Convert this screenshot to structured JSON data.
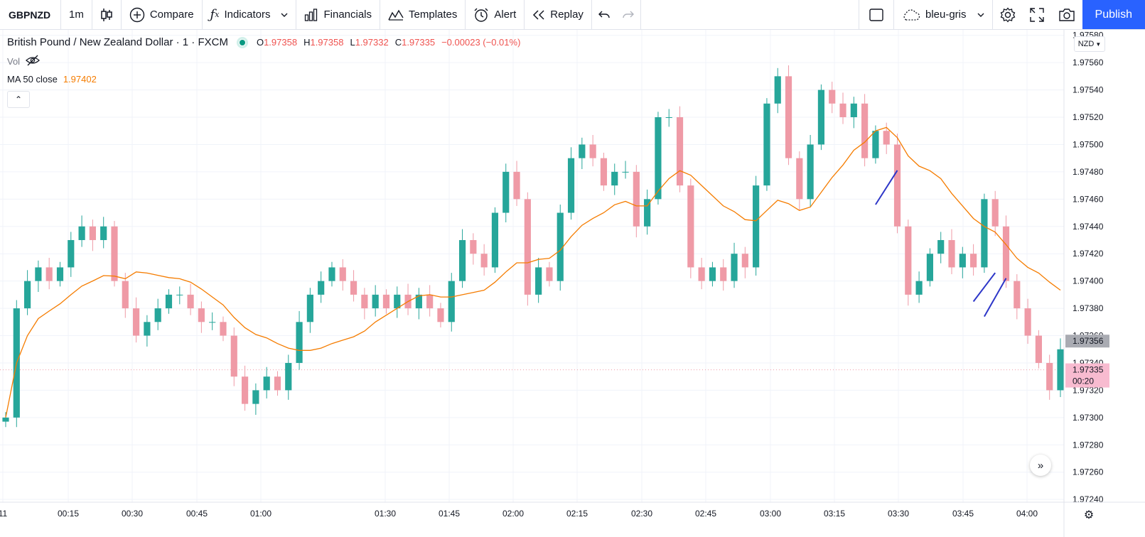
{
  "toolbar": {
    "symbol": "GBPNZD",
    "interval": "1m",
    "compare": "Compare",
    "indicators": "Indicators",
    "financials": "Financials",
    "templates": "Templates",
    "alert": "Alert",
    "replay": "Replay",
    "layout_name": "bleu-gris",
    "publish": "Publish"
  },
  "legend": {
    "instrument": "British Pound / New Zealand Dollar · 1 · FXCM",
    "open_key": "O",
    "open": "1.97358",
    "high_key": "H",
    "high": "1.97358",
    "low_key": "L",
    "low": "1.97332",
    "close_key": "C",
    "close": "1.97335",
    "change": "−0.00023 (−0.01%)",
    "vol_label": "Vol",
    "ma_label": "MA 50 close",
    "ma_value": "1.97402"
  },
  "currency_selector": "NZD",
  "colors": {
    "up": "#26a69a",
    "down": "#ef9aa6",
    "ma": "#f57c00",
    "accent": "#2962ff",
    "drawings": "#2d36c8",
    "last_price_bg": "#f8bbd0"
  },
  "price_labels": {
    "last_price": "1.97335",
    "countdown": "00:20",
    "crosshair_price": "1.97356"
  },
  "chart_data": {
    "type": "candlestick",
    "symbol": "GBPNZD",
    "interval": "1m",
    "y_ticks": [
      "1.97580",
      "1.97560",
      "1.97540",
      "1.97520",
      "1.97500",
      "1.97480",
      "1.97460",
      "1.97440",
      "1.97420",
      "1.97400",
      "1.97380",
      "1.97360",
      "1.97340",
      "1.97320",
      "1.97300",
      "1.97280",
      "1.97260",
      "1.97240"
    ],
    "x_ticks": [
      "11",
      "00:15",
      "00:30",
      "00:45",
      "01:00",
      "01:30",
      "01:45",
      "02:00",
      "02:15",
      "02:30",
      "02:45",
      "03:00",
      "03:15",
      "03:30",
      "03:45",
      "04:00"
    ],
    "ylim": [
      1.97238,
      1.97584
    ],
    "close_series": [
      1.973,
      1.9738,
      1.974,
      1.9741,
      1.974,
      1.9741,
      1.9743,
      1.9744,
      1.9743,
      1.9744,
      1.974,
      1.9738,
      1.9736,
      1.9737,
      1.9738,
      1.9739,
      1.9739,
      1.9738,
      1.9737,
      1.9737,
      1.9736,
      1.9733,
      1.9731,
      1.9732,
      1.9733,
      1.9732,
      1.9734,
      1.9737,
      1.9739,
      1.974,
      1.9741,
      1.974,
      1.9739,
      1.9738,
      1.9739,
      1.9738,
      1.9739,
      1.9738,
      1.9739,
      1.9738,
      1.9737,
      1.974,
      1.9743,
      1.9742,
      1.9741,
      1.9745,
      1.9748,
      1.9746,
      1.9739,
      1.9741,
      1.974,
      1.9745,
      1.9749,
      1.975,
      1.9749,
      1.9747,
      1.9748,
      1.9748,
      1.9744,
      1.9746,
      1.9752,
      1.9752,
      1.9747,
      1.9741,
      1.974,
      1.9741,
      1.974,
      1.9742,
      1.9741,
      1.9747,
      1.9753,
      1.9755,
      1.9749,
      1.9746,
      1.975,
      1.9754,
      1.9753,
      1.9752,
      1.9753,
      1.9749,
      1.9751,
      1.975,
      1.9744,
      1.9739,
      1.974,
      1.9742,
      1.9743,
      1.9741,
      1.9742,
      1.9741,
      1.9746,
      1.9744,
      1.974,
      1.9738,
      1.9736,
      1.9734,
      1.9732,
      1.9735
    ],
    "ma_label": "MA 50 close",
    "ma_last": 1.97402,
    "last_price": 1.97335
  }
}
